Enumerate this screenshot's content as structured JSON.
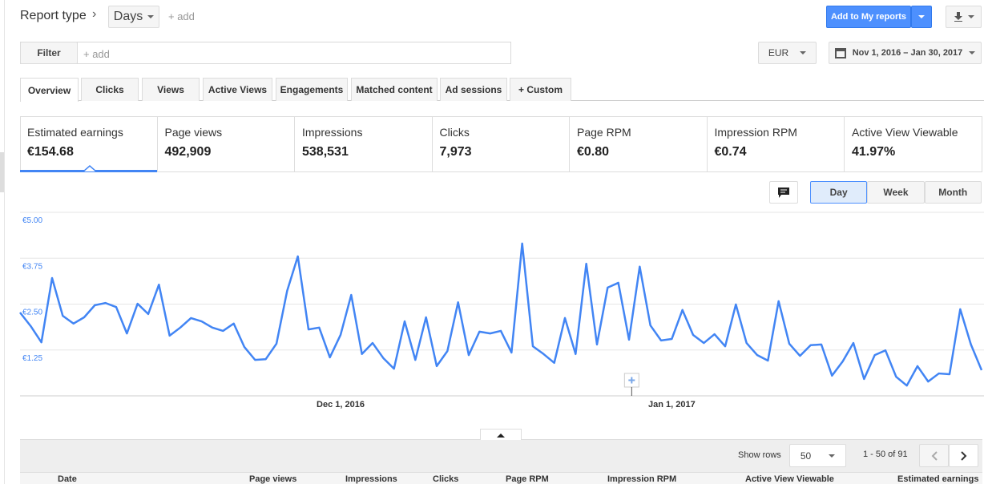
{
  "header": {
    "report_type": "Report type",
    "dimension": "Days",
    "add": "+ add",
    "add_to_reports": "Add to My reports"
  },
  "filter": {
    "label": "Filter",
    "placeholder": "+ add",
    "currency": "EUR",
    "date_range": "Nov 1, 2016 – Jan 30, 2017"
  },
  "tabs": [
    "Overview",
    "Clicks",
    "Views",
    "Active Views",
    "Engagements",
    "Matched content",
    "Ad sessions",
    "+ Custom"
  ],
  "metrics": [
    {
      "label": "Estimated earnings",
      "value": "€154.68"
    },
    {
      "label": "Page views",
      "value": "492,909"
    },
    {
      "label": "Impressions",
      "value": "538,531"
    },
    {
      "label": "Clicks",
      "value": "7,973"
    },
    {
      "label": "Page RPM",
      "value": "€0.80"
    },
    {
      "label": "Impression RPM",
      "value": "€0.74"
    },
    {
      "label": "Active View Viewable",
      "value": "41.97%"
    }
  ],
  "granularity": [
    "Day",
    "Week",
    "Month"
  ],
  "chart_data": {
    "type": "line",
    "color": "#4285f4",
    "grid": true,
    "x": [
      "2016-11-01",
      "2016-11-02",
      "2016-11-03",
      "2016-11-04",
      "2016-11-05",
      "2016-11-06",
      "2016-11-07",
      "2016-11-08",
      "2016-11-09",
      "2016-11-10",
      "2016-11-11",
      "2016-11-12",
      "2016-11-13",
      "2016-11-14",
      "2016-11-15",
      "2016-11-16",
      "2016-11-17",
      "2016-11-18",
      "2016-11-19",
      "2016-11-20",
      "2016-11-21",
      "2016-11-22",
      "2016-11-23",
      "2016-11-24",
      "2016-11-25",
      "2016-11-26",
      "2016-11-27",
      "2016-11-28",
      "2016-11-29",
      "2016-11-30",
      "2016-12-01",
      "2016-12-02",
      "2016-12-03",
      "2016-12-04",
      "2016-12-05",
      "2016-12-06",
      "2016-12-07",
      "2016-12-08",
      "2016-12-09",
      "2016-12-10",
      "2016-12-11",
      "2016-12-12",
      "2016-12-13",
      "2016-12-14",
      "2016-12-15",
      "2016-12-16",
      "2016-12-17",
      "2016-12-18",
      "2016-12-19",
      "2016-12-20",
      "2016-12-21",
      "2016-12-22",
      "2016-12-23",
      "2016-12-24",
      "2016-12-25",
      "2016-12-26",
      "2016-12-27",
      "2016-12-28",
      "2016-12-29",
      "2016-12-30",
      "2016-12-31",
      "2017-01-01",
      "2017-01-02",
      "2017-01-03",
      "2017-01-04",
      "2017-01-05",
      "2017-01-06",
      "2017-01-07",
      "2017-01-08",
      "2017-01-09",
      "2017-01-10",
      "2017-01-11",
      "2017-01-12",
      "2017-01-13",
      "2017-01-14",
      "2017-01-15",
      "2017-01-16",
      "2017-01-17",
      "2017-01-18",
      "2017-01-19",
      "2017-01-20",
      "2017-01-21",
      "2017-01-22",
      "2017-01-23",
      "2017-01-24",
      "2017-01-25",
      "2017-01-26",
      "2017-01-27",
      "2017-01-28",
      "2017-01-29",
      "2017-01-30"
    ],
    "values": [
      2.27,
      1.9,
      1.46,
      3.21,
      2.18,
      1.97,
      2.14,
      2.47,
      2.53,
      2.42,
      1.7,
      2.51,
      2.23,
      3.03,
      1.64,
      1.86,
      2.12,
      2.03,
      1.86,
      1.77,
      1.97,
      1.33,
      0.98,
      1.0,
      1.42,
      2.86,
      3.8,
      1.81,
      1.86,
      1.05,
      1.66,
      2.75,
      1.14,
      1.44,
      1.03,
      0.74,
      2.03,
      0.98,
      2.14,
      0.81,
      1.22,
      2.55,
      1.11,
      1.75,
      1.7,
      1.77,
      1.18,
      4.15,
      1.35,
      1.14,
      0.9,
      2.12,
      1.14,
      3.6,
      1.4,
      2.95,
      3.08,
      1.53,
      3.52,
      1.92,
      1.51,
      1.55,
      2.34,
      1.66,
      1.44,
      1.68,
      1.35,
      2.49,
      1.44,
      1.11,
      0.96,
      2.58,
      1.42,
      1.09,
      1.38,
      1.4,
      0.55,
      0.94,
      1.44,
      0.46,
      1.11,
      1.24,
      0.52,
      0.28,
      0.81,
      0.39,
      0.61,
      0.59,
      2.36,
      1.4,
      0.7
    ],
    "ylim": [
      0,
      5
    ],
    "yticks": [
      {
        "value": 1.25,
        "label": "€1.25"
      },
      {
        "value": 2.5,
        "label": "€2.50"
      },
      {
        "value": 3.75,
        "label": "€3.75"
      },
      {
        "value": 5,
        "label": "€5.00"
      }
    ],
    "xticks": [
      {
        "value": "2016-12-01",
        "label": "Dec 1, 2016"
      },
      {
        "value": "2017-01-01",
        "label": "Jan 1, 2017"
      }
    ]
  },
  "table": {
    "show_rows_label": "Show rows",
    "rows_per_page": 50,
    "range": "1 - 50 of 91",
    "columns": [
      "Date",
      "Page views",
      "Impressions",
      "Clicks",
      "Page RPM",
      "Impression RPM",
      "Active View Viewable",
      "Estimated earnings"
    ]
  }
}
